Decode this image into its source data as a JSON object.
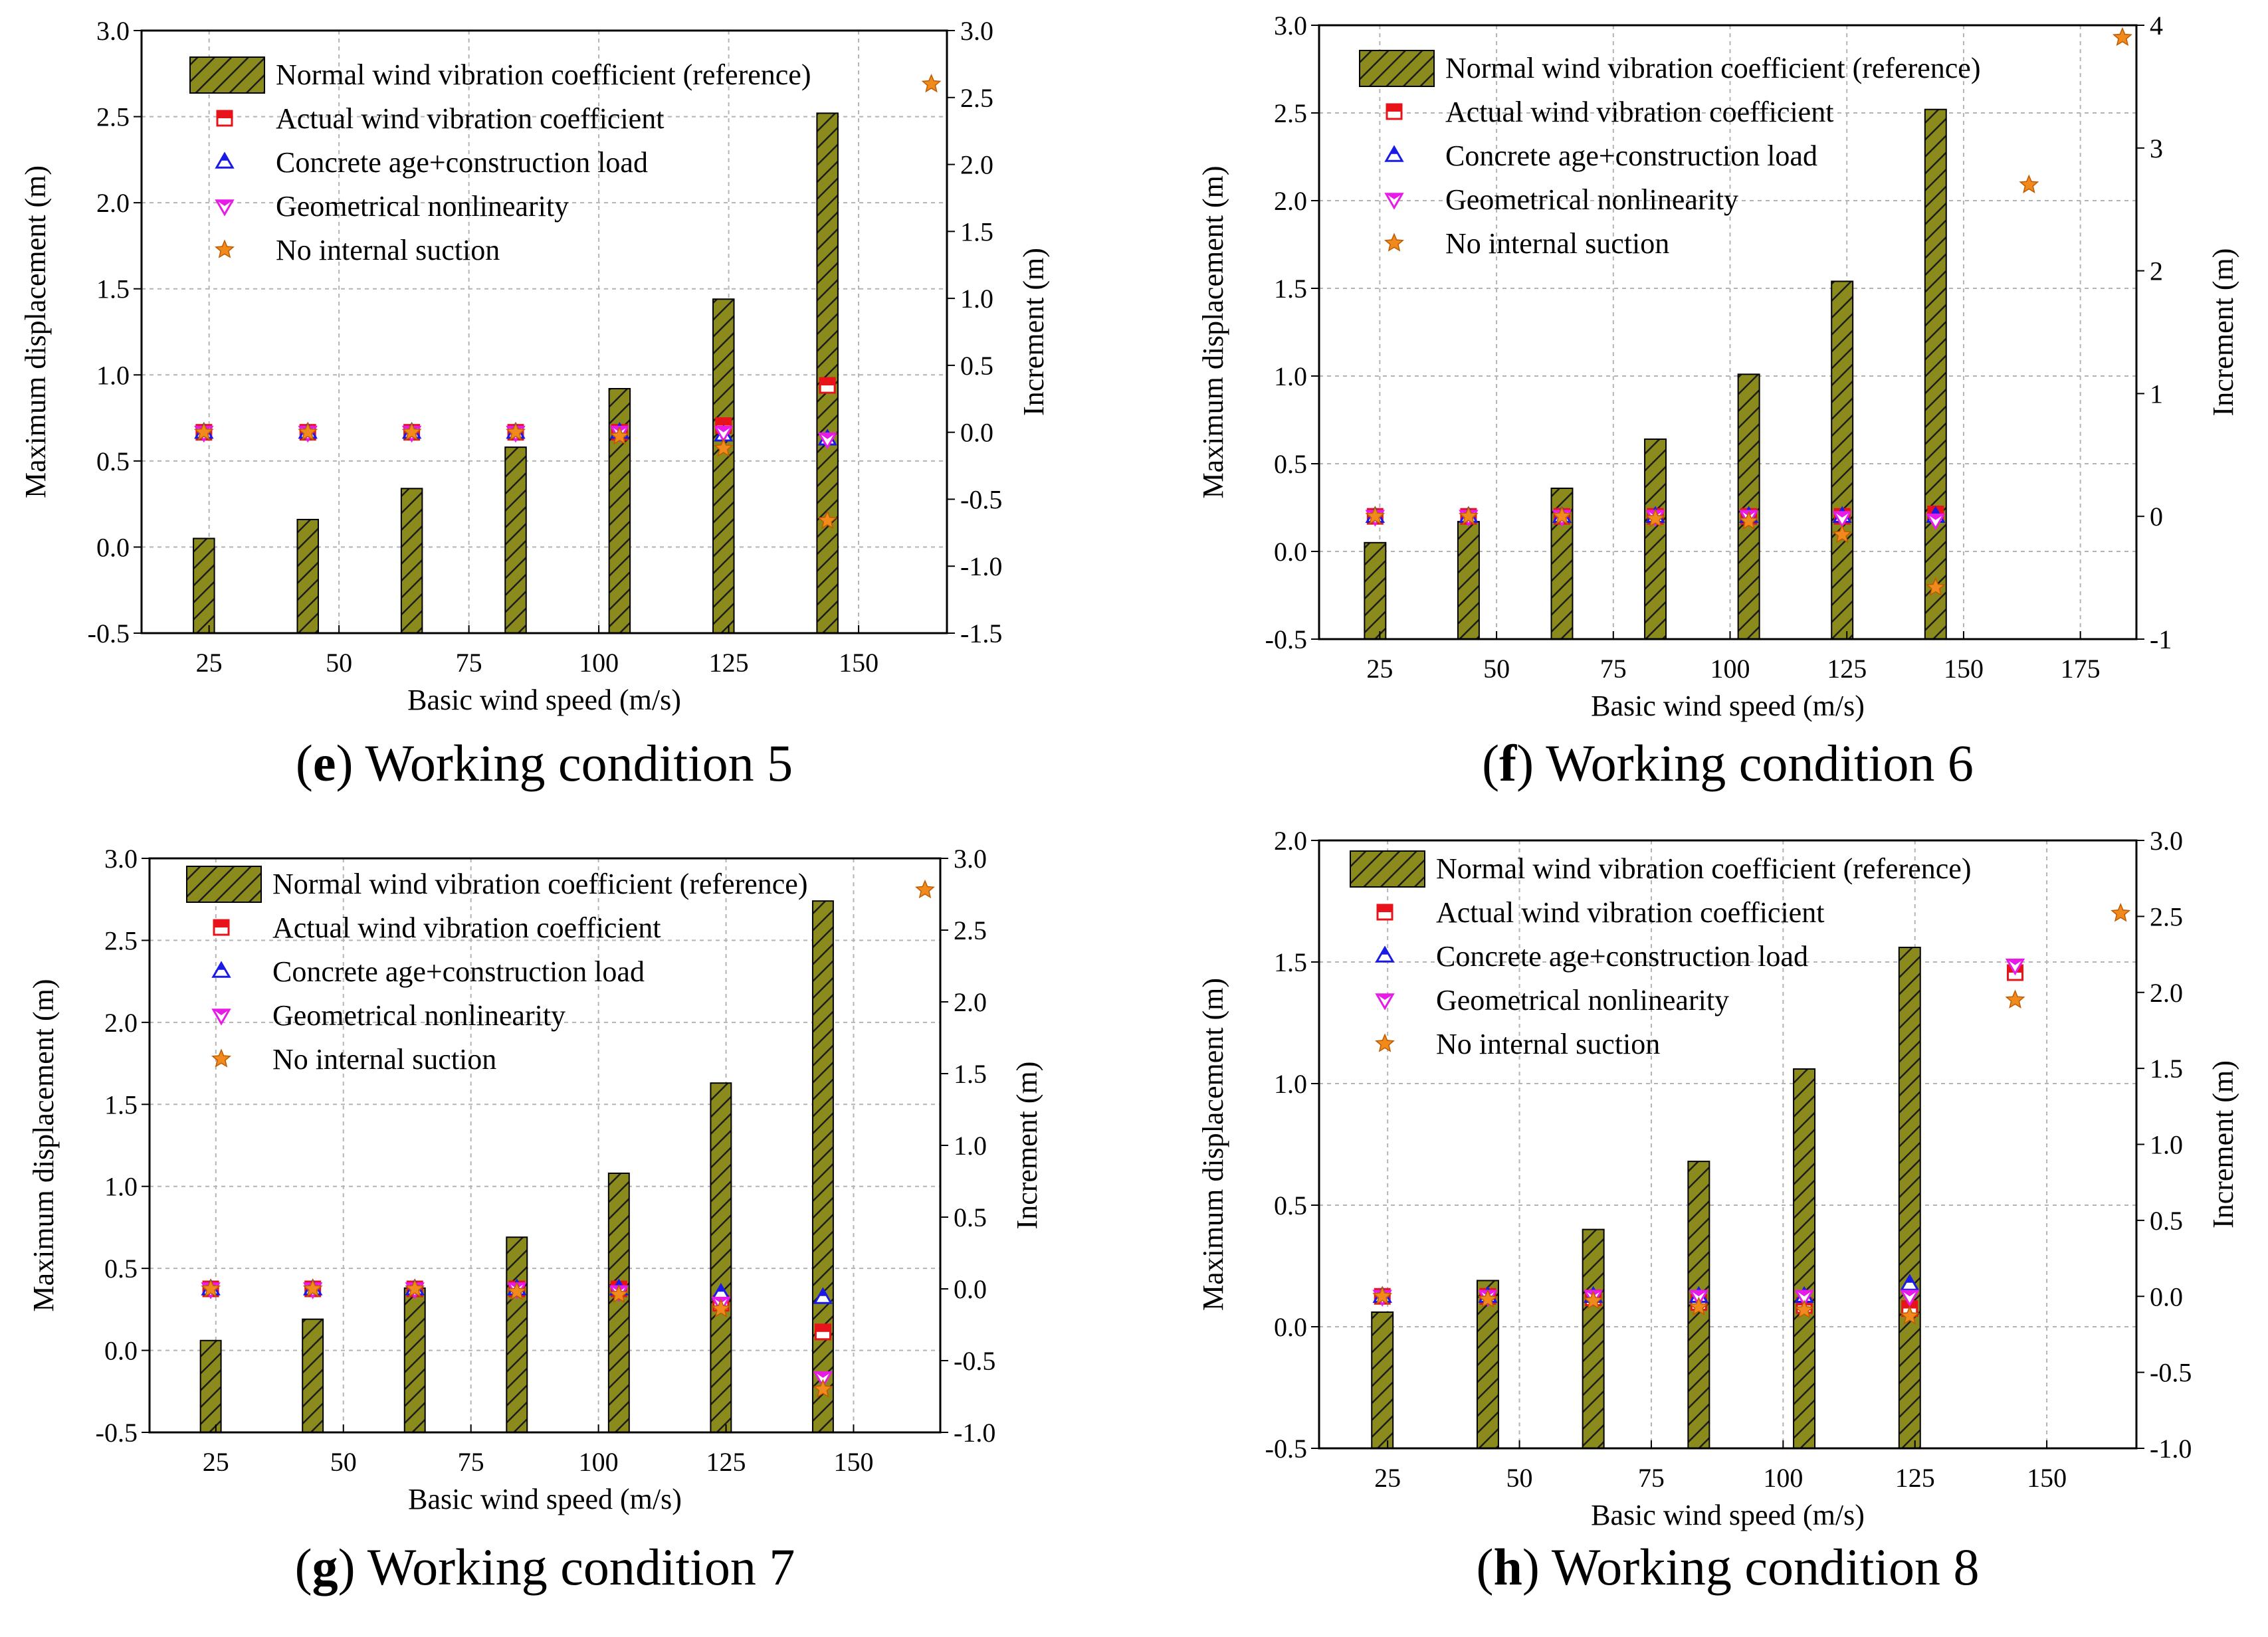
{
  "colors": {
    "bar_fill": "#8b8b1d",
    "bar_hatch": "#1c1c1c",
    "actual": "#e8121a",
    "concrete": "#1a1ae8",
    "geom": "#e81ae8",
    "suction": "#f08a1c",
    "grid": "#b4b4b4"
  },
  "chart_data": [
    {
      "panel": "e",
      "type": "bar",
      "caption_letter": "e",
      "caption_text": ") Working condition 5",
      "xlabel": "Basic wind speed (m/s)",
      "ylabel": "Maximum displacement (m)",
      "y2label": "Increment (m)",
      "xlim": [
        12,
        167
      ],
      "xticks": [
        25,
        50,
        75,
        100,
        125,
        150
      ],
      "xtick_labels": [
        "25",
        "50",
        "75",
        "100",
        "125",
        "150"
      ],
      "ylim": [
        -0.5,
        3.0
      ],
      "yticks": [
        -0.5,
        0.0,
        0.5,
        1.0,
        1.5,
        2.0,
        2.5,
        3.0
      ],
      "ytick_labels": [
        "-0.5",
        "0.0",
        "0.5",
        "1.0",
        "1.5",
        "2.0",
        "2.5",
        "3.0"
      ],
      "y2lim": [
        -1.5,
        3.0
      ],
      "y2ticks": [
        -1.5,
        -1.0,
        -0.5,
        0.0,
        0.5,
        1.0,
        1.5,
        2.0,
        2.5,
        3.0
      ],
      "y2tick_labels": [
        "-1.5",
        "-1.0",
        "-0.5",
        "0.0",
        "0.5",
        "1.0",
        "1.5",
        "2.0",
        "2.5",
        "3.0"
      ],
      "legend": [
        "Normal wind vibration coefficient (reference)",
        "Actual wind vibration coefficient",
        "Concrete age+construction load",
        "Geometrical nonlinearity",
        "No internal suction"
      ],
      "categories": [
        24,
        44,
        64,
        84,
        104,
        124,
        144
      ],
      "reference": [
        0.05,
        0.16,
        0.34,
        0.58,
        0.92,
        1.44,
        2.52
      ],
      "series": [
        {
          "name": "Actual wind vibration coefficient",
          "marker": "square",
          "values": [
            0.0,
            0.0,
            0.0,
            0.0,
            0.0,
            0.05,
            0.35
          ]
        },
        {
          "name": "Concrete age+construction load",
          "marker": "triangle-up",
          "values": [
            0.0,
            0.0,
            0.0,
            0.0,
            0.0,
            -0.02,
            -0.05
          ]
        },
        {
          "name": "Geometrical nonlinearity",
          "marker": "triangle-down",
          "values": [
            0.0,
            0.0,
            0.0,
            0.0,
            0.0,
            0.0,
            -0.05
          ]
        },
        {
          "name": "No internal suction",
          "marker": "star",
          "values": [
            0.0,
            0.0,
            0.0,
            0.0,
            -0.03,
            -0.12,
            -0.66
          ]
        }
      ],
      "extra_points": [
        {
          "series": "No internal suction",
          "marker": "star",
          "x": 164,
          "y2": 2.6
        }
      ]
    },
    {
      "panel": "f",
      "type": "bar",
      "caption_letter": "f",
      "caption_text": ") Working condition 6",
      "xlabel": "Basic wind speed (m/s)",
      "ylabel": "Maximum displacement (m)",
      "y2label": "Increment (m)",
      "xlim": [
        12,
        187
      ],
      "xticks": [
        25,
        50,
        75,
        100,
        125,
        150,
        175
      ],
      "xtick_labels": [
        "25",
        "50",
        "75",
        "100",
        "125",
        "150",
        "175"
      ],
      "ylim": [
        -0.5,
        3.0
      ],
      "yticks": [
        -0.5,
        0.0,
        0.5,
        1.0,
        1.5,
        2.0,
        2.5,
        3.0
      ],
      "ytick_labels": [
        "-0.5",
        "0.0",
        "0.5",
        "1.0",
        "1.5",
        "2.0",
        "2.5",
        "3.0"
      ],
      "y2lim": [
        -1,
        4
      ],
      "y2ticks": [
        -1,
        0,
        1,
        2,
        3,
        4
      ],
      "y2tick_labels": [
        "-1",
        "0",
        "1",
        "2",
        "3",
        "4"
      ],
      "legend": [
        "Normal wind vibration coefficient (reference)",
        "Actual wind vibration coefficient",
        "Concrete age+construction load",
        "Geometrical nonlinearity",
        "No internal suction"
      ],
      "categories": [
        24,
        44,
        64,
        84,
        104,
        124,
        144
      ],
      "reference": [
        0.05,
        0.17,
        0.36,
        0.64,
        1.01,
        1.54,
        2.52
      ],
      "series": [
        {
          "name": "Actual wind vibration coefficient",
          "marker": "square",
          "values": [
            0.0,
            0.0,
            0.0,
            0.0,
            0.0,
            0.0,
            0.02
          ]
        },
        {
          "name": "Concrete age+construction load",
          "marker": "triangle-up",
          "values": [
            0.0,
            0.0,
            0.0,
            0.0,
            0.0,
            0.0,
            0.0
          ]
        },
        {
          "name": "Geometrical nonlinearity",
          "marker": "triangle-down",
          "values": [
            0.0,
            0.0,
            0.0,
            0.0,
            0.0,
            -0.01,
            -0.03
          ]
        },
        {
          "name": "No internal suction",
          "marker": "star",
          "values": [
            0.0,
            0.0,
            0.0,
            -0.02,
            -0.04,
            -0.15,
            -0.58
          ]
        }
      ],
      "extra_points": [
        {
          "series": "No internal suction",
          "marker": "star",
          "x": 164,
          "y2": 2.7
        },
        {
          "series": "No internal suction",
          "marker": "star",
          "x": 184,
          "y2": 3.9
        }
      ]
    },
    {
      "panel": "g",
      "type": "bar",
      "caption_letter": "g",
      "caption_text": ") Working condition 7",
      "xlabel": "Basic wind speed (m/s)",
      "ylabel": "Maximum displacement (m)",
      "y2label": "Increment (m)",
      "xlim": [
        12,
        167
      ],
      "xticks": [
        25,
        50,
        75,
        100,
        125,
        150
      ],
      "xtick_labels": [
        "25",
        "50",
        "75",
        "100",
        "125",
        "150"
      ],
      "ylim": [
        -0.5,
        3.0
      ],
      "yticks": [
        -0.5,
        0.0,
        0.5,
        1.0,
        1.5,
        2.0,
        2.5,
        3.0
      ],
      "ytick_labels": [
        "-0.5",
        "0.0",
        "0.5",
        "1.0",
        "1.5",
        "2.0",
        "2.5",
        "3.0"
      ],
      "y2lim": [
        -1.0,
        3.0
      ],
      "y2ticks": [
        -1.0,
        -0.5,
        0.0,
        0.5,
        1.0,
        1.5,
        2.0,
        2.5,
        3.0
      ],
      "y2tick_labels": [
        "-1.0",
        "-0.5",
        "0.0",
        "0.5",
        "1.0",
        "1.5",
        "2.0",
        "2.5",
        "3.0"
      ],
      "legend": [
        "Normal wind vibration coefficient (reference)",
        "Actual wind vibration coefficient",
        "Concrete age+construction load",
        "Geometrical nonlinearity",
        "No internal suction"
      ],
      "categories": [
        24,
        44,
        64,
        84,
        104,
        124,
        144
      ],
      "reference": [
        0.06,
        0.19,
        0.38,
        0.69,
        1.08,
        1.63,
        2.74
      ],
      "series": [
        {
          "name": "Actual wind vibration coefficient",
          "marker": "square",
          "values": [
            0.0,
            0.0,
            0.0,
            0.0,
            0.0,
            -0.1,
            -0.3
          ]
        },
        {
          "name": "Concrete age+construction load",
          "marker": "triangle-up",
          "values": [
            0.0,
            0.0,
            0.0,
            0.0,
            0.0,
            -0.03,
            -0.06
          ]
        },
        {
          "name": "Geometrical nonlinearity",
          "marker": "triangle-down",
          "values": [
            0.0,
            0.0,
            0.0,
            0.0,
            -0.02,
            -0.1,
            -0.62
          ]
        },
        {
          "name": "No internal suction",
          "marker": "star",
          "values": [
            0.0,
            0.0,
            0.0,
            -0.02,
            -0.04,
            -0.14,
            -0.7
          ]
        }
      ],
      "extra_points": [
        {
          "series": "No internal suction",
          "marker": "star",
          "x": 164,
          "y2": 2.78
        }
      ]
    },
    {
      "panel": "h",
      "type": "bar",
      "caption_letter": "h",
      "caption_text": ") Working condition 8",
      "xlabel": "Basic wind speed (m/s)",
      "ylabel": "Maximum displacement (m)",
      "y2label": "Increment (m)",
      "xlim": [
        12,
        167
      ],
      "xticks": [
        25,
        50,
        75,
        100,
        125,
        150
      ],
      "xtick_labels": [
        "25",
        "50",
        "75",
        "100",
        "125",
        "150"
      ],
      "ylim": [
        -0.5,
        2.0
      ],
      "yticks": [
        -0.5,
        0.0,
        0.5,
        1.0,
        1.5,
        2.0
      ],
      "ytick_labels": [
        "-0.5",
        "0.0",
        "0.5",
        "1.0",
        "1.5",
        "2.0"
      ],
      "y2lim": [
        -1.0,
        3.0
      ],
      "y2ticks": [
        -1.0,
        -0.5,
        0.0,
        0.5,
        1.0,
        1.5,
        2.0,
        2.5,
        3.0
      ],
      "y2tick_labels": [
        "-1.0",
        "-0.5",
        "0.0",
        "0.5",
        "1.0",
        "1.5",
        "2.0",
        "2.5",
        "3.0"
      ],
      "legend": [
        "Normal wind vibration coefficient (reference)",
        "Actual wind vibration coefficient",
        "Concrete age+construction load",
        "Geometrical nonlinearity",
        "No internal suction"
      ],
      "categories": [
        24,
        44,
        64,
        84,
        104,
        124
      ],
      "reference": [
        0.06,
        0.19,
        0.4,
        0.68,
        1.06,
        1.56
      ],
      "series": [
        {
          "name": "Actual wind vibration coefficient",
          "marker": "square",
          "values": [
            0.0,
            0.0,
            -0.01,
            -0.04,
            -0.06,
            -0.08
          ]
        },
        {
          "name": "Concrete age+construction load",
          "marker": "triangle-up",
          "values": [
            0.0,
            0.0,
            0.0,
            0.0,
            0.0,
            0.08
          ]
        },
        {
          "name": "Geometrical nonlinearity",
          "marker": "triangle-down",
          "values": [
            0.0,
            0.0,
            0.0,
            0.0,
            0.0,
            0.0
          ]
        },
        {
          "name": "No internal suction",
          "marker": "star",
          "values": [
            0.0,
            -0.02,
            -0.03,
            -0.07,
            -0.09,
            -0.13
          ]
        }
      ],
      "extra_points": [
        {
          "series": "Actual wind vibration coefficient",
          "marker": "square",
          "x": 144,
          "y2": 2.13
        },
        {
          "series": "Geometrical nonlinearity",
          "marker": "triangle-down",
          "x": 144,
          "y2": 2.18
        },
        {
          "series": "No internal suction",
          "marker": "star",
          "x": 144,
          "y2": 1.95
        },
        {
          "series": "No internal suction",
          "marker": "star",
          "x": 164,
          "y2": 2.52
        }
      ]
    }
  ]
}
